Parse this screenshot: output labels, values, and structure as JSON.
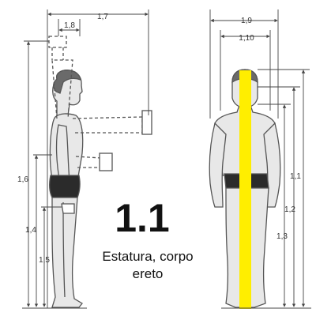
{
  "caption": {
    "number": "1.1",
    "text_line1": "Estatura, corpo",
    "text_line2": "ereto"
  },
  "side_view": {
    "dimensions": [
      "1,7",
      "1,8",
      "1,6",
      "1,4",
      "1,5"
    ]
  },
  "front_view": {
    "dimensions": [
      "1,9",
      "1,10",
      "1,1",
      "1,2",
      "1,3"
    ]
  },
  "colors": {
    "figure_line": "#555555",
    "figure_fill": "#e8e8e8",
    "hair": "#6a6a6a",
    "shorts": "#2b2b2b",
    "highlight_bar": "#ffee00",
    "dimension_line": "#444444"
  }
}
